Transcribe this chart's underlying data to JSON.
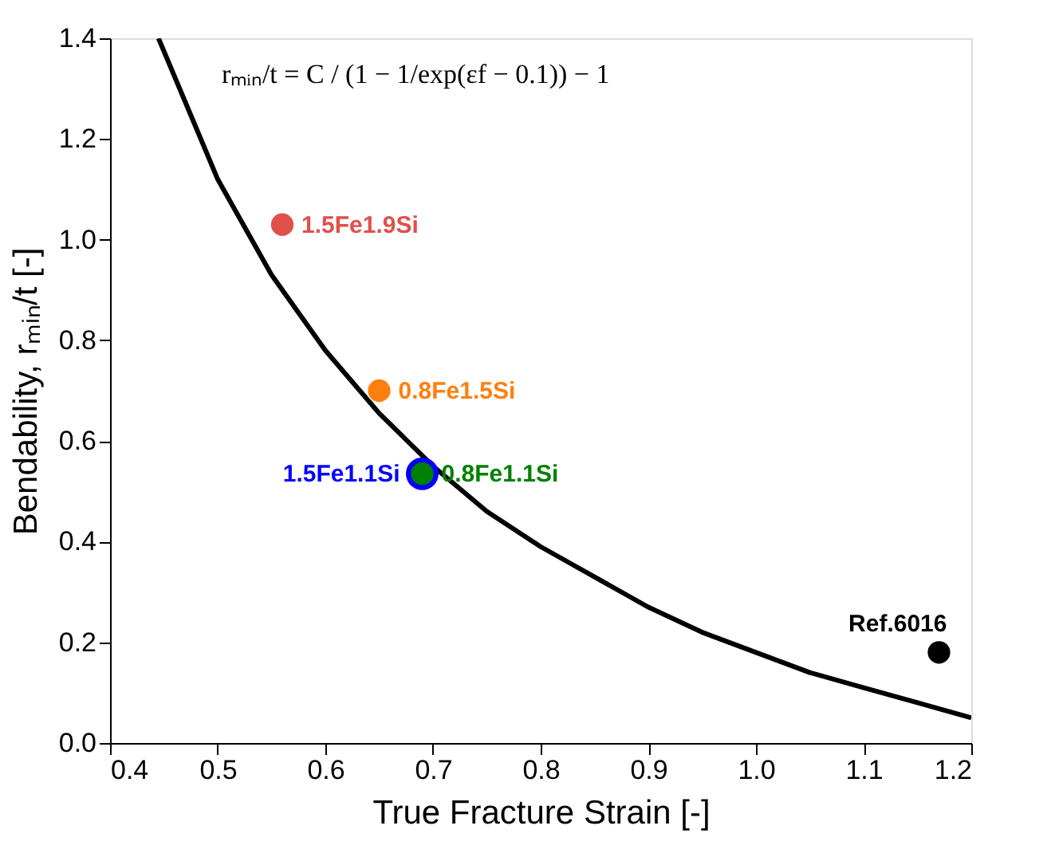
{
  "chart_data": {
    "type": "scatter",
    "xlabel": "True Fracture Strain [-]",
    "ylabel": "Bendability, rₘᵢₙ/t [-]",
    "annotations": [
      "rₘᵢₙ/t = C / (1 − 1/exp(εf − 0.1)) − 1"
    ],
    "xlim": [
      0.4,
      1.2
    ],
    "xticks": [
      0.4,
      0.5,
      0.6,
      0.7,
      0.8,
      0.9,
      {
        "value": 1.0,
        "label": "1.0"
      },
      1.1,
      1.2
    ],
    "ylim": [
      0,
      1.4
    ],
    "yticks": [
      {
        "value": 0,
        "label": "0.0"
      },
      0.2,
      0.4,
      0.6,
      0.8,
      {
        "value": 1.0,
        "label": "1.0"
      },
      1.2,
      1.4
    ],
    "grid": false,
    "marker": "circle",
    "series": [
      {
        "type": "line",
        "color": "#000000",
        "marker": "none",
        "line_style": "solid",
        "x": [
          0.445,
          0.5,
          0.55,
          0.6,
          0.65,
          0.7,
          0.75,
          0.8,
          0.85,
          0.9,
          0.95,
          1.0,
          1.05,
          1.1,
          1.15,
          1.2
        ],
        "values": [
          1.4,
          1.12,
          0.93,
          0.78,
          0.655,
          0.55,
          0.46,
          0.39,
          0.33,
          0.27,
          0.22,
          0.18,
          0.14,
          0.11,
          0.08,
          0.05
        ]
      },
      {
        "name": "1.5Fe1.9Si",
        "color": "#e0504a",
        "x": [
          0.56
        ],
        "values": [
          1.03
        ]
      },
      {
        "name": "0.8Fe1.5Si",
        "color": "#ff7f0e",
        "x": [
          0.65
        ],
        "values": [
          0.7
        ]
      },
      {
        "name": "1.5Fe1.1Si",
        "color": "#0000ff",
        "x": [
          0.69
        ],
        "values": [
          0.535
        ]
      },
      {
        "name": "0.8Fe1.1Si",
        "color": "#008000",
        "x": [
          0.69
        ],
        "values": [
          0.535
        ]
      },
      {
        "name": "Ref.6016",
        "color": "#000000",
        "x": [
          1.17
        ],
        "values": [
          0.18
        ]
      }
    ]
  }
}
